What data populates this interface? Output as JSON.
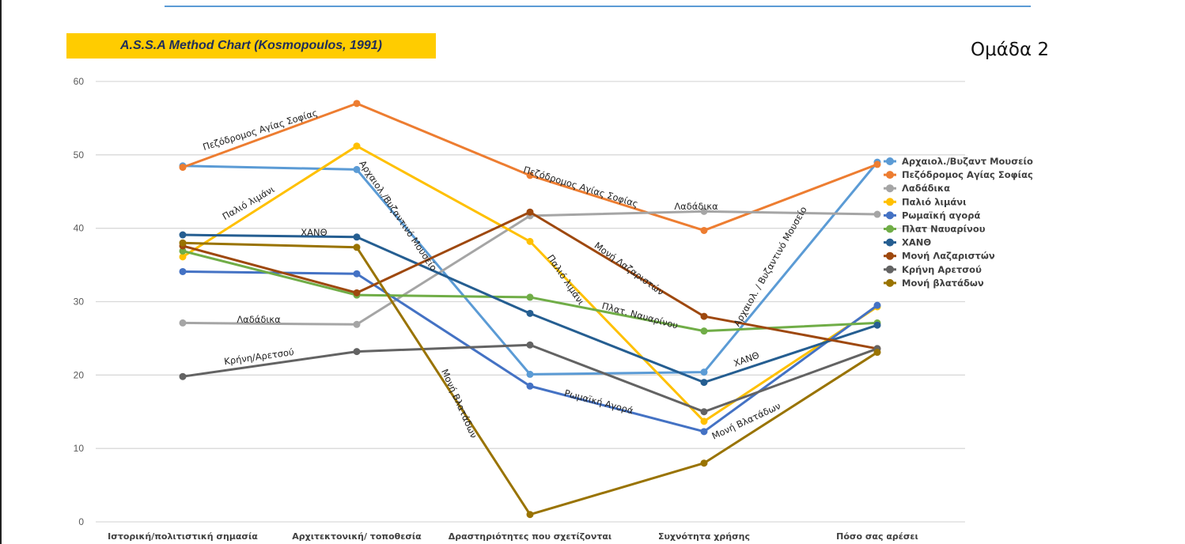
{
  "group_label": "Ομάδα 2",
  "chart_data": {
    "type": "line",
    "title": "A.S.S.A Method Chart (Kosmopoulos, 1991)",
    "xlabel": "",
    "ylabel": "",
    "ylim": [
      0,
      60
    ],
    "yticks": [
      0,
      10,
      20,
      30,
      40,
      50,
      60
    ],
    "grid": true,
    "legend_position": "right",
    "categories": [
      "Ιστορική/πολιτιστική σημασία",
      "Αρχιτεκτονική/ τοποθεσία",
      "Δραστηριότητες που σχετίζονται",
      "Συχνότητα χρήσης",
      "Πόσο σας αρέσει"
    ],
    "series": [
      {
        "name": "Αρχαιολ./Βυζαντ Μουσείο",
        "color": "#5b9bd5",
        "values": [
          48.5,
          48.0,
          20.1,
          20.4,
          49.0
        ]
      },
      {
        "name": "Πεζόδρομος Αγίας Σοφίας",
        "color": "#ed7d31",
        "values": [
          48.3,
          57.0,
          47.2,
          39.7,
          48.7
        ]
      },
      {
        "name": "Λαδάδικα",
        "color": "#a5a5a5",
        "values": [
          27.1,
          26.9,
          41.7,
          42.3,
          41.9
        ]
      },
      {
        "name": "Παλιό λιμάνι",
        "color": "#ffc000",
        "values": [
          36.1,
          51.2,
          38.2,
          13.7,
          29.3
        ]
      },
      {
        "name": "Ρωμαϊκή αγορά",
        "color": "#4472c4",
        "values": [
          34.1,
          33.8,
          18.5,
          12.3,
          29.5
        ]
      },
      {
        "name": "Πλατ Ναυαρίνου",
        "color": "#70ad47",
        "values": [
          36.9,
          30.9,
          30.6,
          26.0,
          27.1
        ]
      },
      {
        "name": "ΧΑΝΘ",
        "color": "#255e91",
        "values": [
          39.1,
          38.8,
          28.4,
          19.0,
          26.8
        ]
      },
      {
        "name": "Μονή Λαζαριστών",
        "color": "#9e480e",
        "values": [
          37.6,
          31.2,
          42.2,
          28.0,
          23.6
        ]
      },
      {
        "name": "Κρήνη Αρετσού",
        "color": "#636363",
        "values": [
          19.8,
          23.2,
          24.1,
          15.0,
          23.6
        ]
      },
      {
        "name": "Μονή βλατάδων",
        "color": "#997300",
        "values": [
          38.0,
          37.4,
          1.0,
          8.0,
          23.1
        ]
      }
    ],
    "annotations": [
      "Πεζόδρομος Αγίας Σοφίας",
      "Παλιό λιμάνι",
      "ΧΑΝΘ",
      "Λαδάδικα",
      "Κρήνη/Αρετσού",
      "Αρχαιολ./Βυζαντινό Μουσείο",
      "Μονή Βλατάδων",
      "Πεζόδρομος Αγίας Σοφίας",
      "Λαδάδικα",
      "Παλιό λιμάνι",
      "Μονή Λαζαριστών",
      "Πλατ. Ναυαρίνου",
      "Ρωμαϊκή Αγορά",
      "Αρχαιολ. / Βυζαντινό Μουσείο",
      "ΧΑΝΘ",
      "Μονή Βλατάδων"
    ]
  }
}
